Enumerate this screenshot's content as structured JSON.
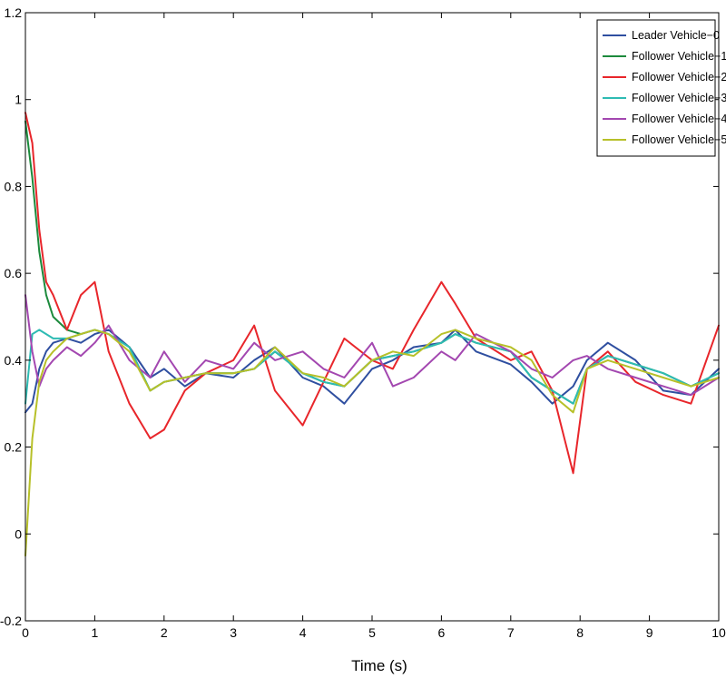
{
  "chart_data": {
    "type": "line",
    "title": "",
    "xlabel": "Time (s)",
    "ylabel": "",
    "xlim": [
      0,
      10
    ],
    "ylim": [
      -0.2,
      1.2
    ],
    "xticks": [
      0,
      1,
      2,
      3,
      4,
      5,
      6,
      7,
      8,
      9,
      10
    ],
    "yticks": [
      -0.2,
      0,
      0.2,
      0.4,
      0.6,
      0.8,
      1,
      1.2
    ],
    "ytick_labels": [
      "-0.2",
      "0",
      "0.2",
      "0.4",
      "0.6",
      "0.8",
      "1",
      "1.2"
    ],
    "legend_position": "top-right",
    "x": [
      0,
      0.1,
      0.2,
      0.3,
      0.4,
      0.6,
      0.8,
      1.0,
      1.2,
      1.5,
      1.8,
      2.0,
      2.3,
      2.6,
      3.0,
      3.3,
      3.6,
      4.0,
      4.3,
      4.6,
      5.0,
      5.3,
      5.6,
      6.0,
      6.2,
      6.5,
      7.0,
      7.3,
      7.6,
      7.9,
      8.1,
      8.4,
      8.8,
      9.2,
      9.6,
      10.0
    ],
    "series": [
      {
        "name": "Leader Vehicle−0",
        "color": "#2f4fa0",
        "values": [
          0.28,
          0.3,
          0.38,
          0.42,
          0.44,
          0.45,
          0.44,
          0.46,
          0.47,
          0.43,
          0.36,
          0.38,
          0.34,
          0.37,
          0.36,
          0.4,
          0.43,
          0.36,
          0.34,
          0.3,
          0.38,
          0.4,
          0.43,
          0.44,
          0.47,
          0.42,
          0.39,
          0.35,
          0.3,
          0.34,
          0.4,
          0.44,
          0.4,
          0.33,
          0.32,
          0.38
        ]
      },
      {
        "name": "Follower Vehicle−1",
        "color": "#1c8a3c",
        "values": [
          0.95,
          0.82,
          0.65,
          0.55,
          0.5,
          0.47,
          0.46,
          0.47,
          0.46,
          0.43,
          0.33,
          0.35,
          0.36,
          0.37,
          0.37,
          0.38,
          0.42,
          0.37,
          0.35,
          0.34,
          0.4,
          0.41,
          0.42,
          0.44,
          0.46,
          0.44,
          0.42,
          0.36,
          0.33,
          0.3,
          0.38,
          0.41,
          0.39,
          0.37,
          0.34,
          0.37
        ]
      },
      {
        "name": "Follower Vehicle−2",
        "color": "#e8262b",
        "values": [
          0.97,
          0.9,
          0.7,
          0.58,
          0.55,
          0.47,
          0.55,
          0.58,
          0.42,
          0.3,
          0.22,
          0.24,
          0.33,
          0.37,
          0.4,
          0.48,
          0.33,
          0.25,
          0.35,
          0.45,
          0.4,
          0.38,
          0.47,
          0.58,
          0.53,
          0.45,
          0.4,
          0.42,
          0.33,
          0.14,
          0.38,
          0.42,
          0.35,
          0.32,
          0.3,
          0.48
        ]
      },
      {
        "name": "Follower Vehicle−3",
        "color": "#2ebbb3",
        "values": [
          0.3,
          0.46,
          0.47,
          0.46,
          0.45,
          0.45,
          0.46,
          0.47,
          0.46,
          0.43,
          0.33,
          0.35,
          0.36,
          0.37,
          0.37,
          0.38,
          0.42,
          0.37,
          0.35,
          0.34,
          0.4,
          0.41,
          0.42,
          0.44,
          0.46,
          0.44,
          0.42,
          0.36,
          0.33,
          0.3,
          0.38,
          0.41,
          0.39,
          0.37,
          0.34,
          0.37
        ]
      },
      {
        "name": "Follower Vehicle−4",
        "color": "#a347b0",
        "values": [
          0.55,
          0.42,
          0.34,
          0.38,
          0.4,
          0.43,
          0.41,
          0.44,
          0.48,
          0.4,
          0.36,
          0.42,
          0.35,
          0.4,
          0.38,
          0.44,
          0.4,
          0.42,
          0.38,
          0.36,
          0.44,
          0.34,
          0.36,
          0.42,
          0.4,
          0.46,
          0.42,
          0.38,
          0.36,
          0.4,
          0.41,
          0.38,
          0.36,
          0.34,
          0.32,
          0.36
        ]
      },
      {
        "name": "Follower Vehicle−5",
        "color": "#b7c029",
        "values": [
          -0.05,
          0.22,
          0.35,
          0.4,
          0.42,
          0.45,
          0.46,
          0.47,
          0.46,
          0.42,
          0.33,
          0.35,
          0.36,
          0.37,
          0.37,
          0.38,
          0.43,
          0.37,
          0.36,
          0.34,
          0.4,
          0.42,
          0.41,
          0.46,
          0.47,
          0.45,
          0.43,
          0.4,
          0.32,
          0.28,
          0.38,
          0.4,
          0.38,
          0.36,
          0.34,
          0.36
        ]
      }
    ]
  }
}
